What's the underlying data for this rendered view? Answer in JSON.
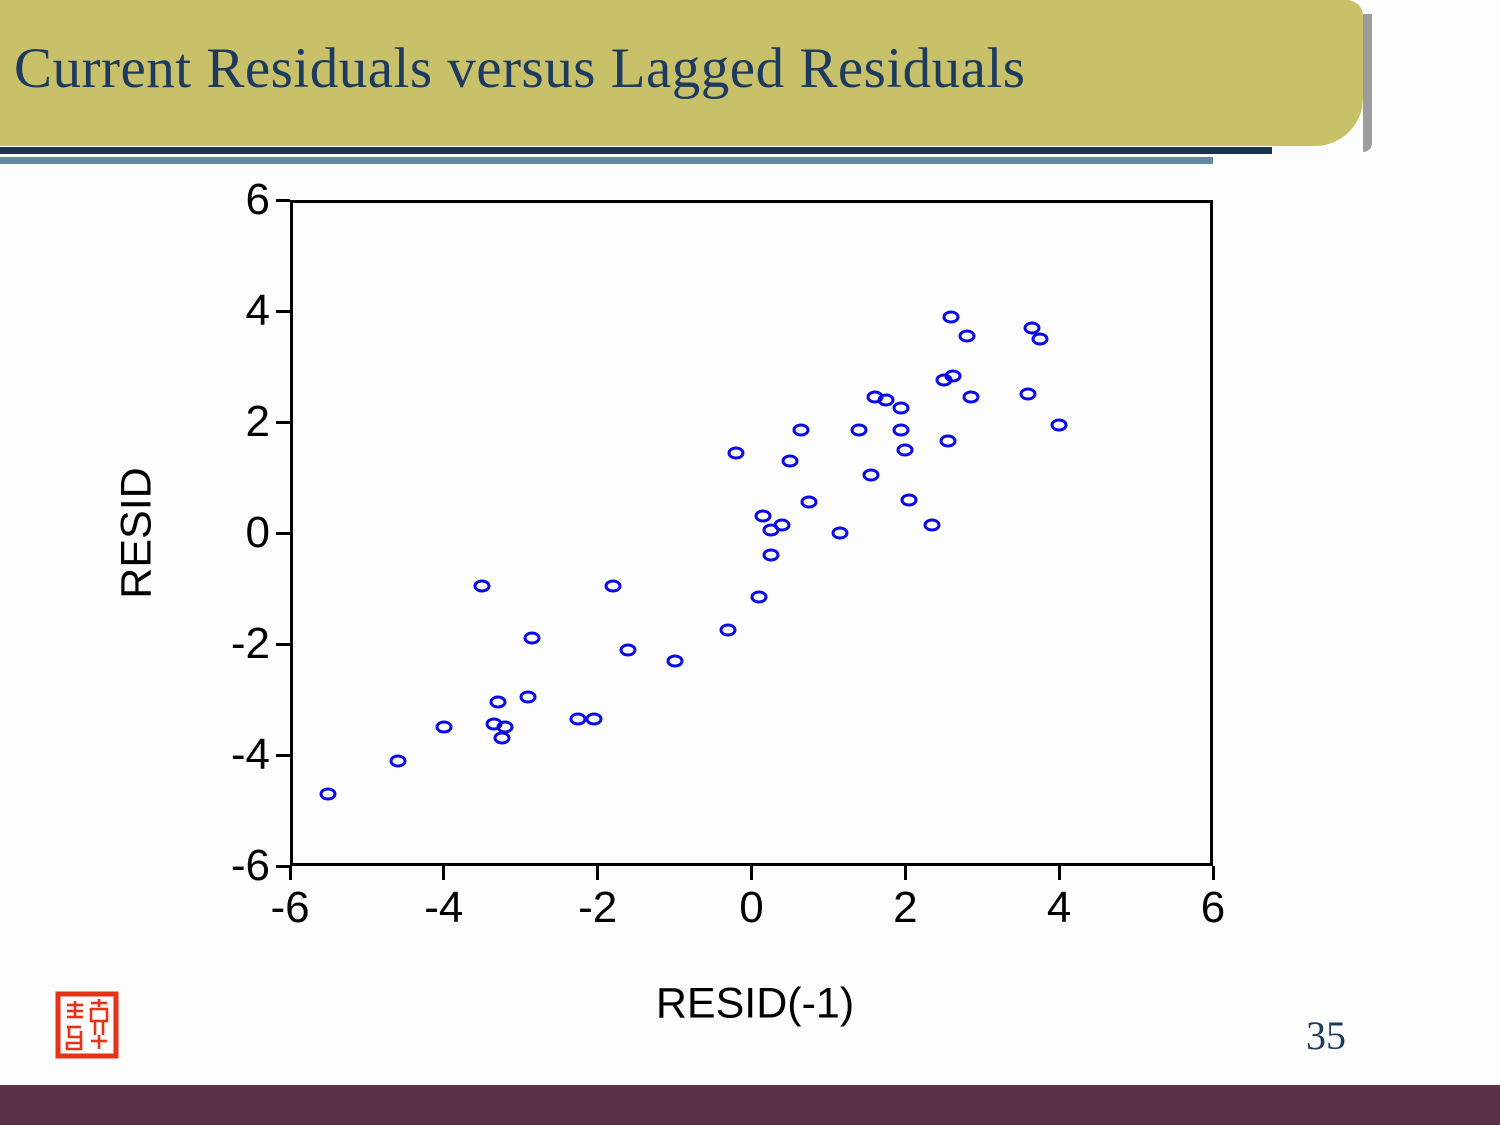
{
  "slide": {
    "title": "Current Residuals versus Lagged Residuals",
    "page_number": "35",
    "colors": {
      "title_bg": "#c8c169",
      "title_text": "#1d3a5f",
      "rule_navy": "#1a3453",
      "rule_teal": "#5e8ca3",
      "footer_bar": "#5a3147",
      "seal_red": "#e5331a",
      "marker_blue": "#0a0ae6"
    }
  },
  "chart_data": {
    "type": "scatter",
    "title": "",
    "xlabel": "RESID(-1)",
    "ylabel": "RESID",
    "xlim": [
      -6,
      6
    ],
    "ylim": [
      -6,
      6
    ],
    "x_ticks": [
      -6,
      -4,
      -2,
      0,
      2,
      4,
      6
    ],
    "y_ticks": [
      6,
      4,
      2,
      0,
      -2,
      -4,
      -6
    ],
    "grid": false,
    "legend": "none",
    "marker": "open-circle",
    "points": [
      [
        -5.5,
        -4.7
      ],
      [
        -4.6,
        -4.1
      ],
      [
        -4.0,
        -3.5
      ],
      [
        -3.35,
        -3.45
      ],
      [
        -3.2,
        -3.5
      ],
      [
        -3.25,
        -3.7
      ],
      [
        -3.3,
        -3.05
      ],
      [
        -2.9,
        -2.95
      ],
      [
        -2.25,
        -3.35
      ],
      [
        -2.05,
        -3.35
      ],
      [
        -2.85,
        -1.9
      ],
      [
        -1.6,
        -2.1
      ],
      [
        -1.0,
        -2.3
      ],
      [
        -3.5,
        -0.95
      ],
      [
        -1.8,
        -0.95
      ],
      [
        -0.3,
        -1.75
      ],
      [
        0.1,
        -1.15
      ],
      [
        0.25,
        -0.4
      ],
      [
        0.15,
        0.3
      ],
      [
        0.25,
        0.05
      ],
      [
        0.4,
        0.15
      ],
      [
        1.15,
        0.0
      ],
      [
        0.75,
        0.55
      ],
      [
        2.05,
        0.6
      ],
      [
        2.35,
        0.15
      ],
      [
        -0.2,
        1.45
      ],
      [
        0.5,
        1.3
      ],
      [
        1.55,
        1.05
      ],
      [
        0.65,
        1.85
      ],
      [
        1.4,
        1.85
      ],
      [
        1.95,
        1.85
      ],
      [
        2.0,
        1.5
      ],
      [
        2.55,
        1.65
      ],
      [
        1.6,
        2.45
      ],
      [
        1.75,
        2.4
      ],
      [
        1.95,
        2.25
      ],
      [
        2.5,
        2.75
      ],
      [
        2.62,
        2.82
      ],
      [
        2.85,
        2.45
      ],
      [
        3.6,
        2.5
      ],
      [
        4.0,
        1.95
      ],
      [
        2.6,
        3.9
      ],
      [
        2.8,
        3.55
      ],
      [
        3.65,
        3.7
      ],
      [
        3.75,
        3.5
      ]
    ]
  }
}
